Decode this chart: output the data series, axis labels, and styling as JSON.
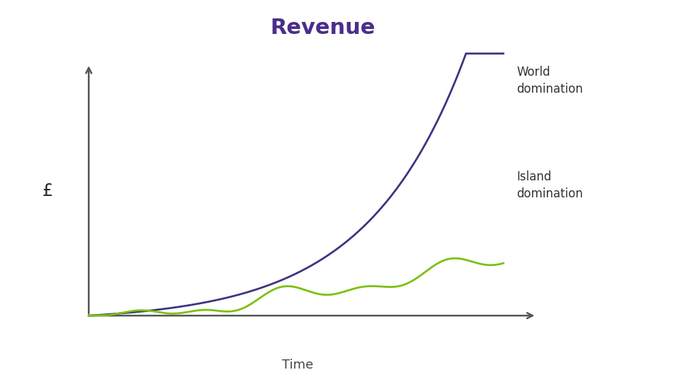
{
  "title": "Revenue",
  "title_color": "#4B2E8A",
  "title_fontsize": 22,
  "title_fontweight": "bold",
  "xlabel": "Time",
  "ylabel": "£",
  "background_color": "#ffffff",
  "world_color": "#3D3580",
  "island_color": "#7DC010",
  "axis_color": "#555555",
  "label_fontsize": 13,
  "annotation_fontsize": 12,
  "world_label": "World\ndomination",
  "island_label": "Island\ndomination",
  "world_label_color": "#333333",
  "island_label_color": "#333333"
}
